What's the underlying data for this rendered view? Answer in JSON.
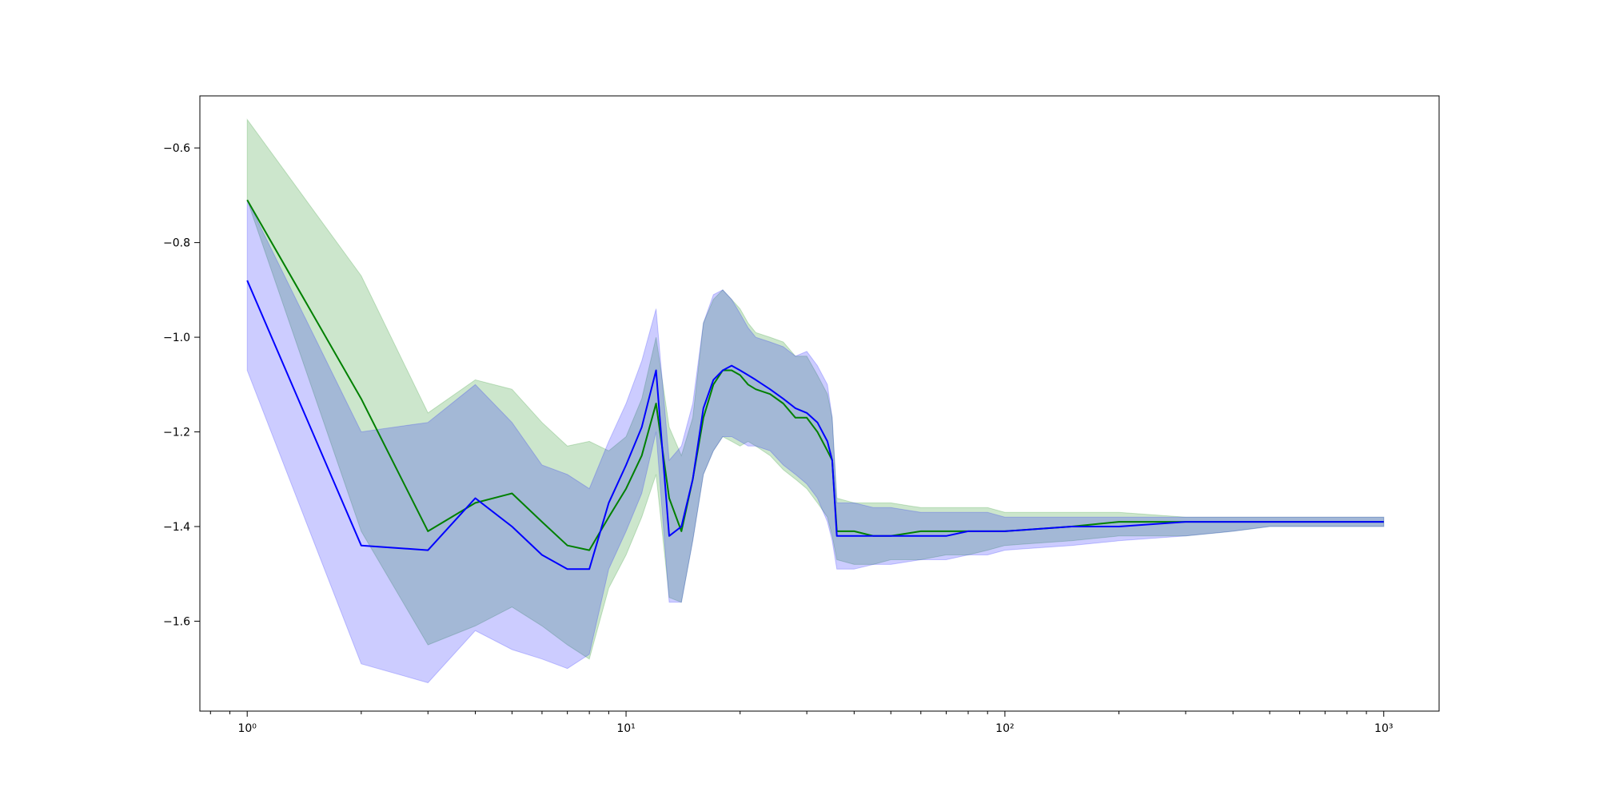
{
  "chart_data": {
    "type": "line",
    "xscale": "log",
    "xlim": [
      0.75,
      1400
    ],
    "ylim": [
      -1.79,
      -0.49
    ],
    "grid": false,
    "xticks": [
      {
        "value": 1,
        "label": "10⁰"
      },
      {
        "value": 10,
        "label": "10¹"
      },
      {
        "value": 100,
        "label": "10²"
      },
      {
        "value": 1000,
        "label": "10³"
      }
    ],
    "yticks": [
      {
        "value": -0.6,
        "label": "−0.6"
      },
      {
        "value": -0.8,
        "label": "−0.8"
      },
      {
        "value": -1.0,
        "label": "−1.0"
      },
      {
        "value": -1.2,
        "label": "−1.2"
      },
      {
        "value": -1.4,
        "label": "−1.4"
      },
      {
        "value": -1.6,
        "label": "−1.6"
      }
    ],
    "series": [
      {
        "color": "#008000",
        "band_color": "#008000",
        "band_opacity": 0.2,
        "x": [
          1,
          2,
          3,
          4,
          5,
          6,
          7,
          8,
          9,
          10,
          11,
          12,
          13,
          14,
          15,
          16,
          17,
          18,
          19,
          20,
          21,
          22,
          24,
          26,
          28,
          30,
          32,
          34,
          35,
          36,
          40,
          45,
          50,
          60,
          70,
          80,
          90,
          100,
          150,
          200,
          300,
          400,
          500,
          700,
          1000
        ],
        "y": [
          -0.71,
          -1.13,
          -1.41,
          -1.35,
          -1.33,
          -1.39,
          -1.44,
          -1.45,
          -1.38,
          -1.32,
          -1.25,
          -1.14,
          -1.34,
          -1.41,
          -1.3,
          -1.17,
          -1.1,
          -1.07,
          -1.07,
          -1.08,
          -1.1,
          -1.11,
          -1.12,
          -1.14,
          -1.17,
          -1.17,
          -1.2,
          -1.24,
          -1.26,
          -1.41,
          -1.41,
          -1.42,
          -1.42,
          -1.41,
          -1.41,
          -1.41,
          -1.41,
          -1.41,
          -1.4,
          -1.39,
          -1.39,
          -1.39,
          -1.39,
          -1.39,
          -1.39
        ],
        "lower": [
          -0.71,
          -1.41,
          -1.65,
          -1.61,
          -1.57,
          -1.61,
          -1.65,
          -1.68,
          -1.53,
          -1.46,
          -1.38,
          -1.29,
          -1.55,
          -1.56,
          -1.43,
          -1.29,
          -1.24,
          -1.21,
          -1.22,
          -1.23,
          -1.22,
          -1.23,
          -1.25,
          -1.28,
          -1.3,
          -1.32,
          -1.35,
          -1.38,
          -1.42,
          -1.47,
          -1.48,
          -1.48,
          -1.47,
          -1.47,
          -1.46,
          -1.46,
          -1.45,
          -1.44,
          -1.43,
          -1.42,
          -1.42,
          -1.41,
          -1.4,
          -1.4,
          -1.4
        ],
        "upper": [
          -0.54,
          -0.87,
          -1.16,
          -1.09,
          -1.11,
          -1.18,
          -1.23,
          -1.22,
          -1.24,
          -1.21,
          -1.13,
          -1.0,
          -1.19,
          -1.25,
          -1.17,
          -0.97,
          -0.92,
          -0.9,
          -0.92,
          -0.94,
          -0.97,
          -0.99,
          -1.0,
          -1.01,
          -1.04,
          -1.04,
          -1.08,
          -1.12,
          -1.17,
          -1.34,
          -1.35,
          -1.35,
          -1.35,
          -1.36,
          -1.36,
          -1.36,
          -1.36,
          -1.37,
          -1.37,
          -1.37,
          -1.38,
          -1.38,
          -1.38,
          -1.38,
          -1.38
        ]
      },
      {
        "color": "#0000ff",
        "band_color": "#0000ff",
        "band_opacity": 0.2,
        "x": [
          1,
          2,
          3,
          4,
          5,
          6,
          7,
          8,
          9,
          10,
          11,
          12,
          13,
          14,
          15,
          16,
          17,
          18,
          19,
          20,
          21,
          22,
          24,
          26,
          28,
          30,
          32,
          34,
          35,
          36,
          40,
          45,
          50,
          60,
          70,
          80,
          90,
          100,
          150,
          200,
          300,
          400,
          500,
          700,
          1000
        ],
        "y": [
          -0.88,
          -1.44,
          -1.45,
          -1.34,
          -1.4,
          -1.46,
          -1.49,
          -1.49,
          -1.35,
          -1.27,
          -1.19,
          -1.07,
          -1.42,
          -1.4,
          -1.3,
          -1.15,
          -1.09,
          -1.07,
          -1.06,
          -1.07,
          -1.08,
          -1.09,
          -1.11,
          -1.13,
          -1.15,
          -1.16,
          -1.18,
          -1.22,
          -1.26,
          -1.42,
          -1.42,
          -1.42,
          -1.42,
          -1.42,
          -1.42,
          -1.41,
          -1.41,
          -1.41,
          -1.4,
          -1.4,
          -1.39,
          -1.39,
          -1.39,
          -1.39,
          -1.39
        ],
        "lower": [
          -1.07,
          -1.69,
          -1.73,
          -1.62,
          -1.66,
          -1.68,
          -1.7,
          -1.67,
          -1.49,
          -1.41,
          -1.33,
          -1.2,
          -1.56,
          -1.56,
          -1.43,
          -1.29,
          -1.24,
          -1.21,
          -1.21,
          -1.22,
          -1.23,
          -1.23,
          -1.24,
          -1.27,
          -1.29,
          -1.31,
          -1.34,
          -1.39,
          -1.43,
          -1.49,
          -1.49,
          -1.48,
          -1.48,
          -1.47,
          -1.47,
          -1.46,
          -1.46,
          -1.45,
          -1.44,
          -1.43,
          -1.42,
          -1.41,
          -1.4,
          -1.4,
          -1.4
        ],
        "upper": [
          -0.71,
          -1.2,
          -1.18,
          -1.1,
          -1.18,
          -1.27,
          -1.29,
          -1.32,
          -1.22,
          -1.14,
          -1.05,
          -0.94,
          -1.26,
          -1.23,
          -1.14,
          -0.97,
          -0.91,
          -0.9,
          -0.92,
          -0.95,
          -0.98,
          -1.0,
          -1.01,
          -1.02,
          -1.04,
          -1.03,
          -1.06,
          -1.1,
          -1.17,
          -1.35,
          -1.35,
          -1.36,
          -1.36,
          -1.37,
          -1.37,
          -1.37,
          -1.37,
          -1.38,
          -1.38,
          -1.38,
          -1.38,
          -1.38,
          -1.38,
          -1.38,
          -1.38
        ]
      }
    ]
  }
}
